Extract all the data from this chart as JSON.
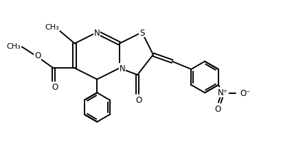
{
  "bg_color": "#ffffff",
  "line_color": "#000000",
  "line_width": 1.4,
  "font_size": 8.5,
  "figsize": [
    4.1,
    2.3
  ],
  "dpi": 100,
  "xlim": [
    -0.5,
    10.5
  ],
  "ylim": [
    -0.5,
    6.5
  ]
}
